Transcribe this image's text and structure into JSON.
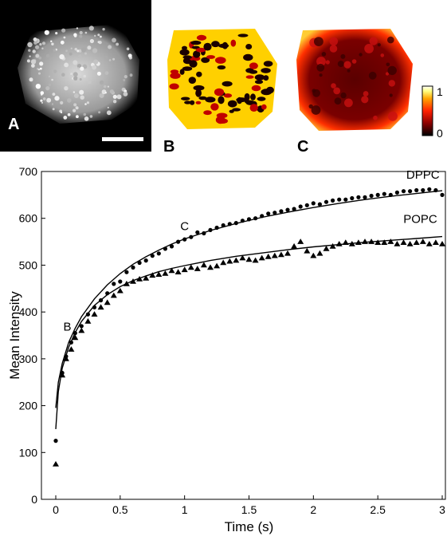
{
  "panels": {
    "a": {
      "letter": "A",
      "has_scale_bar": true
    },
    "b": {
      "letter": "B"
    },
    "c": {
      "letter": "C"
    },
    "colorbar": {
      "max_label": "1",
      "min_label": "0",
      "colors": [
        "#000000",
        "#8b0000",
        "#ff2000",
        "#ffa500",
        "#ffff80",
        "#ffffff"
      ]
    }
  },
  "chart_data": {
    "type": "scatter",
    "title": "",
    "xlabel": "Time (s)",
    "ylabel": "Mean Intensity",
    "xlim": [
      0,
      3
    ],
    "ylim": [
      0,
      700
    ],
    "xticks": [
      "0",
      "0.5",
      "1",
      "1.5",
      "2",
      "2.5",
      "3"
    ],
    "yticks": [
      "0",
      "100",
      "200",
      "300",
      "400",
      "500",
      "600",
      "700"
    ],
    "grid": false,
    "annotations": [
      {
        "text": "B",
        "x": 0.09,
        "y": 360
      },
      {
        "text": "C",
        "x": 1.0,
        "y": 575
      }
    ],
    "series": [
      {
        "name": "DPPC",
        "marker": "circle",
        "points": [
          [
            0.0,
            125
          ],
          [
            0.05,
            270
          ],
          [
            0.08,
            305
          ],
          [
            0.12,
            335
          ],
          [
            0.15,
            355
          ],
          [
            0.2,
            370
          ],
          [
            0.25,
            395
          ],
          [
            0.3,
            410
          ],
          [
            0.35,
            425
          ],
          [
            0.4,
            440
          ],
          [
            0.45,
            460
          ],
          [
            0.5,
            465
          ],
          [
            0.55,
            485
          ],
          [
            0.6,
            495
          ],
          [
            0.65,
            505
          ],
          [
            0.7,
            510
          ],
          [
            0.75,
            520
          ],
          [
            0.8,
            525
          ],
          [
            0.85,
            535
          ],
          [
            0.9,
            540
          ],
          [
            0.95,
            550
          ],
          [
            1.0,
            555
          ],
          [
            1.05,
            560
          ],
          [
            1.1,
            570
          ],
          [
            1.15,
            568
          ],
          [
            1.2,
            575
          ],
          [
            1.25,
            580
          ],
          [
            1.3,
            585
          ],
          [
            1.35,
            588
          ],
          [
            1.4,
            590
          ],
          [
            1.45,
            595
          ],
          [
            1.5,
            598
          ],
          [
            1.55,
            600
          ],
          [
            1.6,
            605
          ],
          [
            1.65,
            610
          ],
          [
            1.7,
            612
          ],
          [
            1.75,
            615
          ],
          [
            1.8,
            618
          ],
          [
            1.85,
            620
          ],
          [
            1.9,
            625
          ],
          [
            1.95,
            628
          ],
          [
            2.0,
            632
          ],
          [
            2.05,
            630
          ],
          [
            2.1,
            635
          ],
          [
            2.15,
            638
          ],
          [
            2.2,
            640
          ],
          [
            2.25,
            640
          ],
          [
            2.3,
            643
          ],
          [
            2.35,
            645
          ],
          [
            2.4,
            645
          ],
          [
            2.45,
            648
          ],
          [
            2.5,
            650
          ],
          [
            2.55,
            652
          ],
          [
            2.6,
            650
          ],
          [
            2.65,
            655
          ],
          [
            2.7,
            658
          ],
          [
            2.75,
            658
          ],
          [
            2.8,
            660
          ],
          [
            2.85,
            660
          ],
          [
            2.9,
            662
          ],
          [
            2.95,
            660
          ],
          [
            3.0,
            650
          ]
        ],
        "fit": [
          [
            0.0,
            195
          ],
          [
            0.02,
            250
          ],
          [
            0.05,
            290
          ],
          [
            0.1,
            335
          ],
          [
            0.15,
            365
          ],
          [
            0.2,
            390
          ],
          [
            0.3,
            428
          ],
          [
            0.4,
            458
          ],
          [
            0.5,
            482
          ],
          [
            0.6,
            502
          ],
          [
            0.7,
            518
          ],
          [
            0.8,
            532
          ],
          [
            0.9,
            545
          ],
          [
            1.0,
            556
          ],
          [
            1.2,
            574
          ],
          [
            1.4,
            589
          ],
          [
            1.6,
            602
          ],
          [
            1.8,
            613
          ],
          [
            2.0,
            623
          ],
          [
            2.2,
            632
          ],
          [
            2.4,
            640
          ],
          [
            2.6,
            647
          ],
          [
            2.8,
            653
          ],
          [
            3.0,
            659
          ]
        ]
      },
      {
        "name": "POPC",
        "marker": "triangle",
        "points": [
          [
            0.0,
            75
          ],
          [
            0.05,
            265
          ],
          [
            0.08,
            300
          ],
          [
            0.12,
            320
          ],
          [
            0.15,
            345
          ],
          [
            0.2,
            360
          ],
          [
            0.25,
            380
          ],
          [
            0.3,
            395
          ],
          [
            0.35,
            410
          ],
          [
            0.4,
            420
          ],
          [
            0.45,
            435
          ],
          [
            0.5,
            445
          ],
          [
            0.55,
            460
          ],
          [
            0.6,
            465
          ],
          [
            0.65,
            470
          ],
          [
            0.7,
            472
          ],
          [
            0.75,
            478
          ],
          [
            0.8,
            480
          ],
          [
            0.85,
            482
          ],
          [
            0.9,
            488
          ],
          [
            0.95,
            485
          ],
          [
            1.0,
            490
          ],
          [
            1.05,
            495
          ],
          [
            1.1,
            492
          ],
          [
            1.15,
            500
          ],
          [
            1.2,
            495
          ],
          [
            1.25,
            498
          ],
          [
            1.3,
            505
          ],
          [
            1.35,
            508
          ],
          [
            1.4,
            510
          ],
          [
            1.45,
            515
          ],
          [
            1.5,
            512
          ],
          [
            1.55,
            510
          ],
          [
            1.6,
            515
          ],
          [
            1.65,
            518
          ],
          [
            1.7,
            520
          ],
          [
            1.75,
            522
          ],
          [
            1.8,
            525
          ],
          [
            1.85,
            540
          ],
          [
            1.9,
            550
          ],
          [
            1.95,
            530
          ],
          [
            2.0,
            520
          ],
          [
            2.05,
            525
          ],
          [
            2.1,
            535
          ],
          [
            2.15,
            540
          ],
          [
            2.2,
            545
          ],
          [
            2.25,
            548
          ],
          [
            2.3,
            545
          ],
          [
            2.35,
            548
          ],
          [
            2.4,
            550
          ],
          [
            2.45,
            550
          ],
          [
            2.5,
            548
          ],
          [
            2.55,
            548
          ],
          [
            2.6,
            550
          ],
          [
            2.65,
            545
          ],
          [
            2.7,
            548
          ],
          [
            2.75,
            545
          ],
          [
            2.8,
            548
          ],
          [
            2.85,
            550
          ],
          [
            2.9,
            545
          ],
          [
            2.95,
            548
          ],
          [
            3.0,
            545
          ]
        ],
        "fit": [
          [
            0.0,
            150
          ],
          [
            0.02,
            230
          ],
          [
            0.05,
            280
          ],
          [
            0.1,
            325
          ],
          [
            0.15,
            356
          ],
          [
            0.2,
            380
          ],
          [
            0.3,
            414
          ],
          [
            0.4,
            437
          ],
          [
            0.5,
            454
          ],
          [
            0.6,
            467
          ],
          [
            0.7,
            477
          ],
          [
            0.8,
            486
          ],
          [
            0.9,
            493
          ],
          [
            1.0,
            499
          ],
          [
            1.2,
            510
          ],
          [
            1.4,
            519
          ],
          [
            1.6,
            526
          ],
          [
            1.8,
            533
          ],
          [
            2.0,
            539
          ],
          [
            2.2,
            544
          ],
          [
            2.4,
            549
          ],
          [
            2.6,
            553
          ],
          [
            2.8,
            557
          ],
          [
            3.0,
            561
          ]
        ]
      }
    ]
  }
}
